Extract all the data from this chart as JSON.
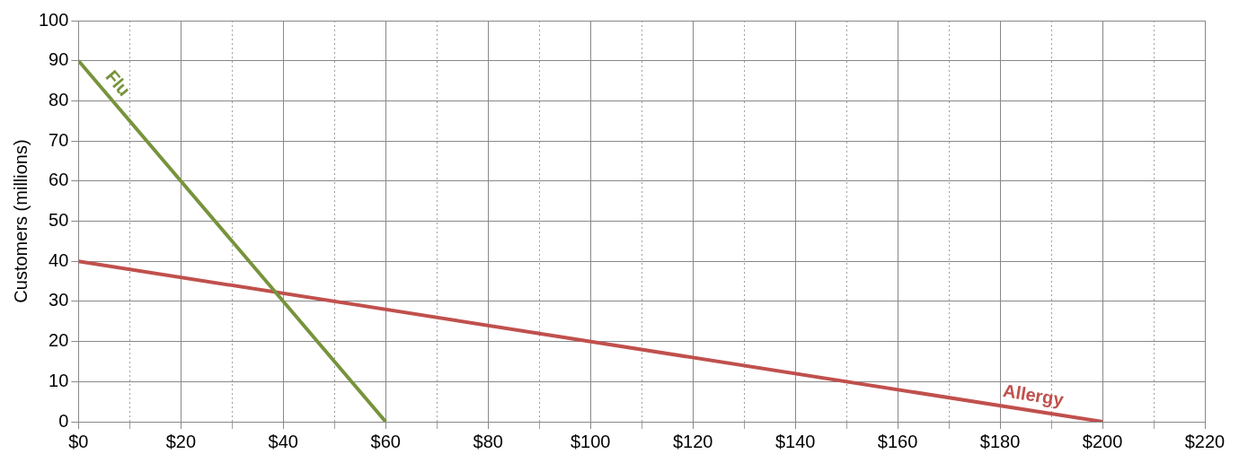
{
  "chart_data": {
    "type": "line",
    "ylabel": "Customers (millions)",
    "series": [
      {
        "name": "Flu",
        "color": "#77933c",
        "x": [
          0,
          60
        ],
        "values": [
          90,
          0
        ]
      },
      {
        "name": "Allergy",
        "color": "#c0504d",
        "x": [
          0,
          200
        ],
        "values": [
          40,
          0
        ]
      }
    ],
    "xlim": [
      0,
      220
    ],
    "xticks": [
      {
        "value": 0,
        "label": "$0"
      },
      {
        "value": 10,
        "label": null
      },
      {
        "value": 20,
        "label": "$20"
      },
      {
        "value": 30,
        "label": null
      },
      {
        "value": 40,
        "label": "$40"
      },
      {
        "value": 50,
        "label": null
      },
      {
        "value": 60,
        "label": "$60"
      },
      {
        "value": 70,
        "label": null
      },
      {
        "value": 80,
        "label": "$80"
      },
      {
        "value": 90,
        "label": null
      },
      {
        "value": 100,
        "label": "$100"
      },
      {
        "value": 110,
        "label": null
      },
      {
        "value": 120,
        "label": "$120"
      },
      {
        "value": 130,
        "label": null
      },
      {
        "value": 140,
        "label": "$140"
      },
      {
        "value": 150,
        "label": null
      },
      {
        "value": 160,
        "label": "$160"
      },
      {
        "value": 170,
        "label": null
      },
      {
        "value": 180,
        "label": "$180"
      },
      {
        "value": 190,
        "label": null
      },
      {
        "value": 200,
        "label": "$200"
      },
      {
        "value": 210,
        "label": null
      },
      {
        "value": 220,
        "label": "$220"
      }
    ],
    "ylim": [
      0,
      100
    ],
    "yticks": [
      0,
      10,
      20,
      30,
      40,
      50,
      60,
      70,
      80,
      90,
      100
    ],
    "grid": true,
    "legend": false,
    "marker": "none",
    "line_style": "solid"
  }
}
